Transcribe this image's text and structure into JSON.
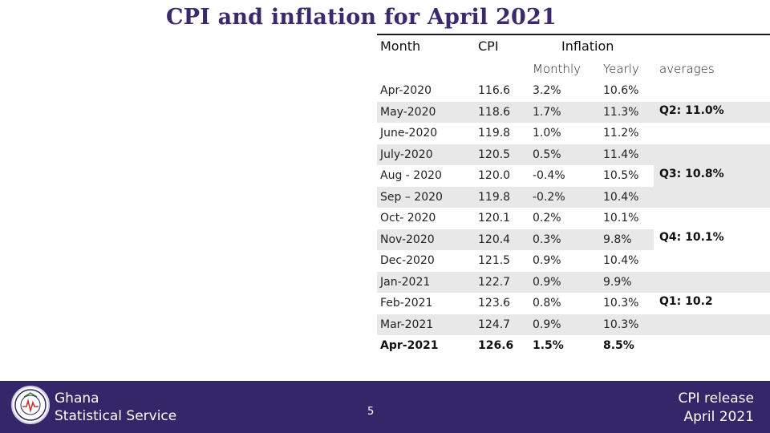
{
  "slide": {
    "title": "CPI and inflation for April 2021",
    "page_number": "5"
  },
  "table": {
    "headers": {
      "month": "Month",
      "cpi": "CPI",
      "inflation": "Inflation"
    },
    "subheaders": {
      "monthly": "Monthly",
      "yearly": "Yearly",
      "averages": "averages"
    },
    "rows": [
      {
        "month": "Apr-2020",
        "cpi": "116.6",
        "monthly": "3.2%",
        "yearly": "10.6%"
      },
      {
        "month": "May-2020",
        "cpi": "118.6",
        "monthly": "1.7%",
        "yearly": "11.3%"
      },
      {
        "month": "June-2020",
        "cpi": "119.8",
        "monthly": "1.0%",
        "yearly": "11.2%"
      },
      {
        "month": "July-2020",
        "cpi": "120.5",
        "monthly": "0.5%",
        "yearly": "11.4%"
      },
      {
        "month": "Aug - 2020",
        "cpi": "120.0",
        "monthly": "-0.4%",
        "yearly": "10.5%"
      },
      {
        "month": "Sep – 2020",
        "cpi": "119.8",
        "monthly": "-0.2%",
        "yearly": "10.4%"
      },
      {
        "month": "Oct- 2020",
        "cpi": "120.1",
        "monthly": "0.2%",
        "yearly": "10.1%"
      },
      {
        "month": "Nov-2020",
        "cpi": "120.4",
        "monthly": "0.3%",
        "yearly": "9.8%"
      },
      {
        "month": "Dec-2020",
        "cpi": "121.5",
        "monthly": "0.9%",
        "yearly": "10.4%"
      },
      {
        "month": "Jan-2021",
        "cpi": "122.7",
        "monthly": "0.9%",
        "yearly": "9.9%"
      },
      {
        "month": "Feb-2021",
        "cpi": "123.6",
        "monthly": "0.8%",
        "yearly": "10.3%"
      },
      {
        "month": "Mar-2021",
        "cpi": "124.7",
        "monthly": "0.9%",
        "yearly": "10.3%"
      },
      {
        "month": "Apr-2021",
        "cpi": "126.6",
        "monthly": "1.5%",
        "yearly": "8.5%"
      }
    ],
    "averages": {
      "q2": "Q2: 11.0%",
      "q3": "Q3: 10.8%",
      "q4": "Q4: 10.1%",
      "q1": "Q1: 10.2"
    }
  },
  "footer": {
    "org_line1": "Ghana",
    "org_line2": "Statistical Service",
    "release_line1": "CPI release",
    "release_line2": "April 2021",
    "logo_text": "GHANA STATISTICAL SERVICE",
    "colors": {
      "band": "#35266a",
      "title": "#3b2a6b",
      "shade": "#e8e8e8"
    }
  }
}
